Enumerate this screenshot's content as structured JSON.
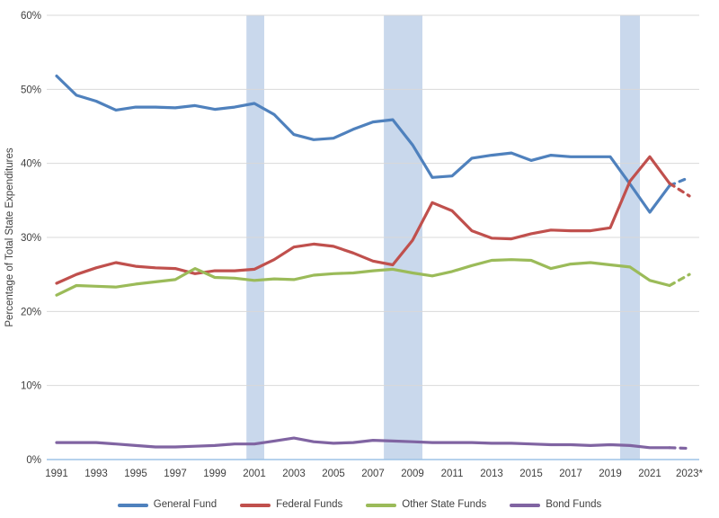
{
  "chart_data": {
    "type": "line",
    "title": "",
    "xlabel": "",
    "ylabel": "Percentage of Total State Expenditures",
    "ylim": [
      0,
      60
    ],
    "ytick_step": 10,
    "ytick_suffix": "%",
    "grid": true,
    "legend_position": "bottom",
    "grid_color": "#D9D9D9",
    "axis_line_color": "#9DC3E6",
    "band_color": "#C9D8EC",
    "text_color": "#404040",
    "x": [
      1991,
      1992,
      1993,
      1994,
      1995,
      1996,
      1997,
      1998,
      1999,
      2000,
      2001,
      2002,
      2003,
      2004,
      2005,
      2006,
      2007,
      2008,
      2009,
      2010,
      2011,
      2012,
      2013,
      2014,
      2015,
      2016,
      2017,
      2018,
      2019,
      2020,
      2021,
      2022,
      2023
    ],
    "x_tick_labels": [
      "1991",
      "1993",
      "1995",
      "1997",
      "1999",
      "2001",
      "2003",
      "2005",
      "2007",
      "2009",
      "2011",
      "2013",
      "2015",
      "2017",
      "2019",
      "2021",
      "2023*"
    ],
    "last_segment_dashed": true,
    "recession_bands": [
      {
        "from": 2000.6,
        "to": 2001.5
      },
      {
        "from": 2007.55,
        "to": 2009.5
      },
      {
        "from": 2019.5,
        "to": 2020.5
      }
    ],
    "series": [
      {
        "name": "General Fund",
        "color": "#4F81BD",
        "values": [
          51.8,
          49.2,
          48.4,
          47.2,
          47.6,
          47.6,
          47.5,
          47.8,
          47.3,
          47.6,
          48.1,
          46.6,
          43.9,
          43.2,
          43.4,
          44.6,
          45.6,
          45.9,
          42.5,
          38.1,
          38.3,
          40.7,
          41.1,
          41.4,
          40.4,
          41.1,
          40.9,
          40.9,
          40.9,
          37.2,
          33.4,
          37.0,
          38.1
        ]
      },
      {
        "name": "Federal Funds",
        "color": "#C0504D",
        "values": [
          23.8,
          25.0,
          25.9,
          26.6,
          26.1,
          25.9,
          25.8,
          25.1,
          25.5,
          25.5,
          25.7,
          27.0,
          28.7,
          29.1,
          28.8,
          27.9,
          26.8,
          26.3,
          29.6,
          34.7,
          33.6,
          30.9,
          29.9,
          29.8,
          30.5,
          31.0,
          30.9,
          30.9,
          31.3,
          37.6,
          40.9,
          37.3,
          35.6
        ]
      },
      {
        "name": "Other State Funds",
        "color": "#9BBB59",
        "values": [
          22.2,
          23.5,
          23.4,
          23.3,
          23.7,
          24.0,
          24.3,
          25.8,
          24.6,
          24.5,
          24.2,
          24.4,
          24.3,
          24.9,
          25.1,
          25.2,
          25.5,
          25.7,
          25.2,
          24.8,
          25.4,
          26.2,
          26.9,
          27.0,
          26.9,
          25.8,
          26.4,
          26.6,
          26.3,
          26.0,
          24.2,
          23.5,
          25.0
        ]
      },
      {
        "name": "Bond Funds",
        "color": "#8064A2",
        "values": [
          2.3,
          2.3,
          2.3,
          2.1,
          1.9,
          1.7,
          1.7,
          1.8,
          1.9,
          2.1,
          2.1,
          2.5,
          2.9,
          2.4,
          2.2,
          2.3,
          2.6,
          2.5,
          2.4,
          2.3,
          2.3,
          2.3,
          2.2,
          2.2,
          2.1,
          2.0,
          2.0,
          1.9,
          2.0,
          1.9,
          1.6,
          1.6,
          1.5
        ]
      }
    ]
  }
}
